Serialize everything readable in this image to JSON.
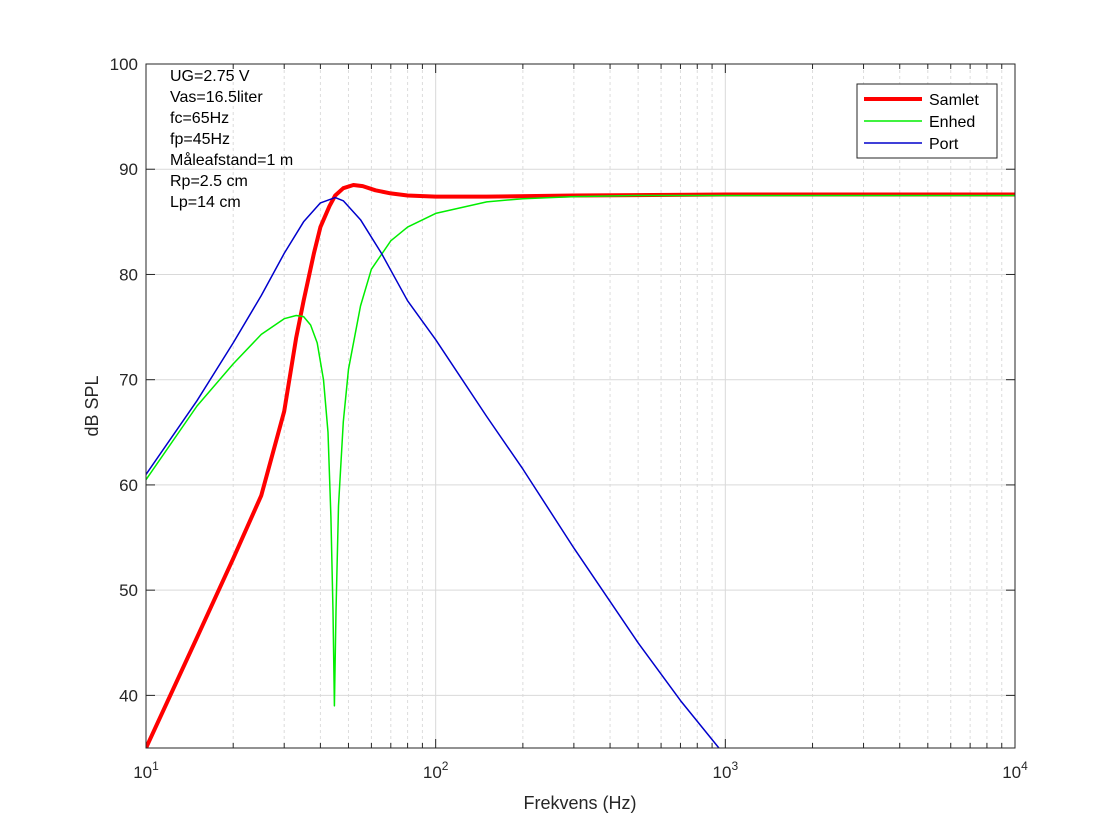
{
  "chart_data": {
    "type": "line",
    "xscale": "log",
    "xlim": [
      10,
      10000
    ],
    "ylim": [
      35,
      100
    ],
    "xlabel": "Frekvens (Hz)",
    "ylabel": "dB SPL",
    "grid": true,
    "yticks": [
      40,
      50,
      60,
      70,
      80,
      90,
      100
    ],
    "ytick_labels": [
      "40",
      "50",
      "60",
      "70",
      "80",
      "90",
      "100"
    ],
    "xticks": [
      10,
      100,
      1000,
      10000
    ],
    "xtick_labels": [
      {
        "base": "10",
        "exp": "1"
      },
      {
        "base": "10",
        "exp": "2"
      },
      {
        "base": "10",
        "exp": "3"
      },
      {
        "base": "10",
        "exp": "4"
      }
    ],
    "annotations": [
      "UG=2.75 V",
      "Vas=16.5liter",
      "fc=65Hz",
      "fp=45Hz",
      "Måleafstand=1 m",
      "Rp=2.5 cm",
      "Lp=14 cm"
    ],
    "legend_position": "top-right",
    "series": [
      {
        "name": "Samlet",
        "color": "#ff0000",
        "width": 4,
        "points": [
          [
            10,
            35
          ],
          [
            15,
            45.5
          ],
          [
            20,
            53
          ],
          [
            25,
            59
          ],
          [
            30,
            67
          ],
          [
            33,
            74
          ],
          [
            35,
            77.5
          ],
          [
            38,
            82
          ],
          [
            40,
            84.5
          ],
          [
            43,
            86.5
          ],
          [
            45,
            87.5
          ],
          [
            48,
            88.2
          ],
          [
            52,
            88.5
          ],
          [
            56,
            88.4
          ],
          [
            62,
            88
          ],
          [
            70,
            87.7
          ],
          [
            80,
            87.5
          ],
          [
            100,
            87.4
          ],
          [
            150,
            87.4
          ],
          [
            300,
            87.5
          ],
          [
            1000,
            87.6
          ],
          [
            10000,
            87.6
          ]
        ]
      },
      {
        "name": "Enhed",
        "color": "#00ee00",
        "width": 1.5,
        "points": [
          [
            10,
            60.5
          ],
          [
            15,
            67.5
          ],
          [
            20,
            71.5
          ],
          [
            25,
            74.3
          ],
          [
            30,
            75.8
          ],
          [
            33,
            76.1
          ],
          [
            35,
            76
          ],
          [
            37,
            75.2
          ],
          [
            39,
            73.5
          ],
          [
            41,
            70
          ],
          [
            42.5,
            65
          ],
          [
            43.5,
            57
          ],
          [
            44.2,
            48
          ],
          [
            44.7,
            39
          ],
          [
            45.3,
            48
          ],
          [
            46.2,
            58
          ],
          [
            48,
            66
          ],
          [
            50,
            71
          ],
          [
            55,
            77
          ],
          [
            60,
            80.5
          ],
          [
            70,
            83.2
          ],
          [
            80,
            84.5
          ],
          [
            100,
            85.8
          ],
          [
            150,
            86.9
          ],
          [
            200,
            87.2
          ],
          [
            300,
            87.4
          ],
          [
            500,
            87.5
          ],
          [
            1000,
            87.5
          ],
          [
            10000,
            87.5
          ]
        ]
      },
      {
        "name": "Port",
        "color": "#0000cc",
        "width": 1.5,
        "points": [
          [
            10,
            61
          ],
          [
            15,
            68
          ],
          [
            20,
            73.5
          ],
          [
            25,
            78
          ],
          [
            30,
            82
          ],
          [
            35,
            85
          ],
          [
            40,
            86.8
          ],
          [
            45,
            87.3
          ],
          [
            48,
            87
          ],
          [
            55,
            85.2
          ],
          [
            65,
            82
          ],
          [
            80,
            77.5
          ],
          [
            100,
            73.8
          ],
          [
            150,
            66.5
          ],
          [
            200,
            61.5
          ],
          [
            300,
            54
          ],
          [
            500,
            45
          ],
          [
            700,
            39.5
          ],
          [
            950,
            35
          ]
        ]
      }
    ]
  }
}
